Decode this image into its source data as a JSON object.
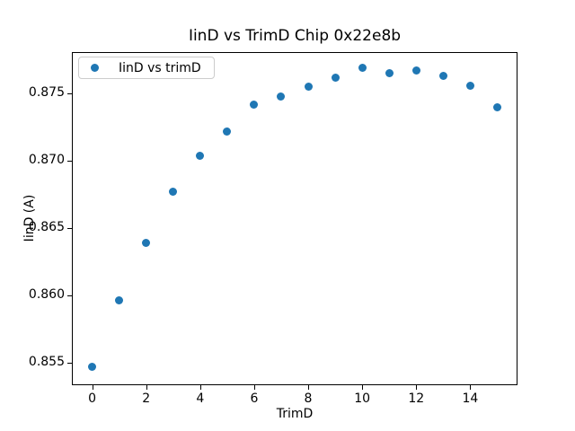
{
  "figure": {
    "title": "IinD vs TrimD Chip 0x22e8b",
    "x_axis_label": "TrimD",
    "y_axis_label": "IinD (A)",
    "legend_label": "IinD vs trimD",
    "marker_color": "#1f77b4",
    "background_color": "#ffffff",
    "spine_color": "#000000"
  },
  "chart_data": {
    "type": "scatter",
    "title": "IinD vs TrimD Chip 0x22e8b",
    "xlabel": "TrimD",
    "ylabel": "IinD (A)",
    "legend": [
      "IinD vs trimD"
    ],
    "legend_position": "upper left",
    "grid": false,
    "marker_color": "#1f77b4",
    "x": [
      0,
      1,
      2,
      3,
      4,
      5,
      6,
      7,
      8,
      9,
      10,
      11,
      12,
      13,
      14,
      15
    ],
    "y": [
      0.8547,
      0.8596,
      0.8639,
      0.8677,
      0.8704,
      0.8722,
      0.8742,
      0.8748,
      0.8755,
      0.8762,
      0.8769,
      0.8765,
      0.8767,
      0.8763,
      0.8756,
      0.874
    ],
    "xlim": [
      -0.75,
      15.75
    ],
    "ylim": [
      0.85333,
      0.87807
    ],
    "xticks": [
      0,
      2,
      4,
      6,
      8,
      10,
      12,
      14
    ],
    "xtick_labels": [
      "0",
      "2",
      "4",
      "6",
      "8",
      "10",
      "12",
      "14"
    ],
    "yticks": [
      0.855,
      0.86,
      0.865,
      0.87,
      0.875
    ],
    "ytick_labels": [
      "0.855",
      "0.860",
      "0.865",
      "0.870",
      "0.875"
    ]
  }
}
